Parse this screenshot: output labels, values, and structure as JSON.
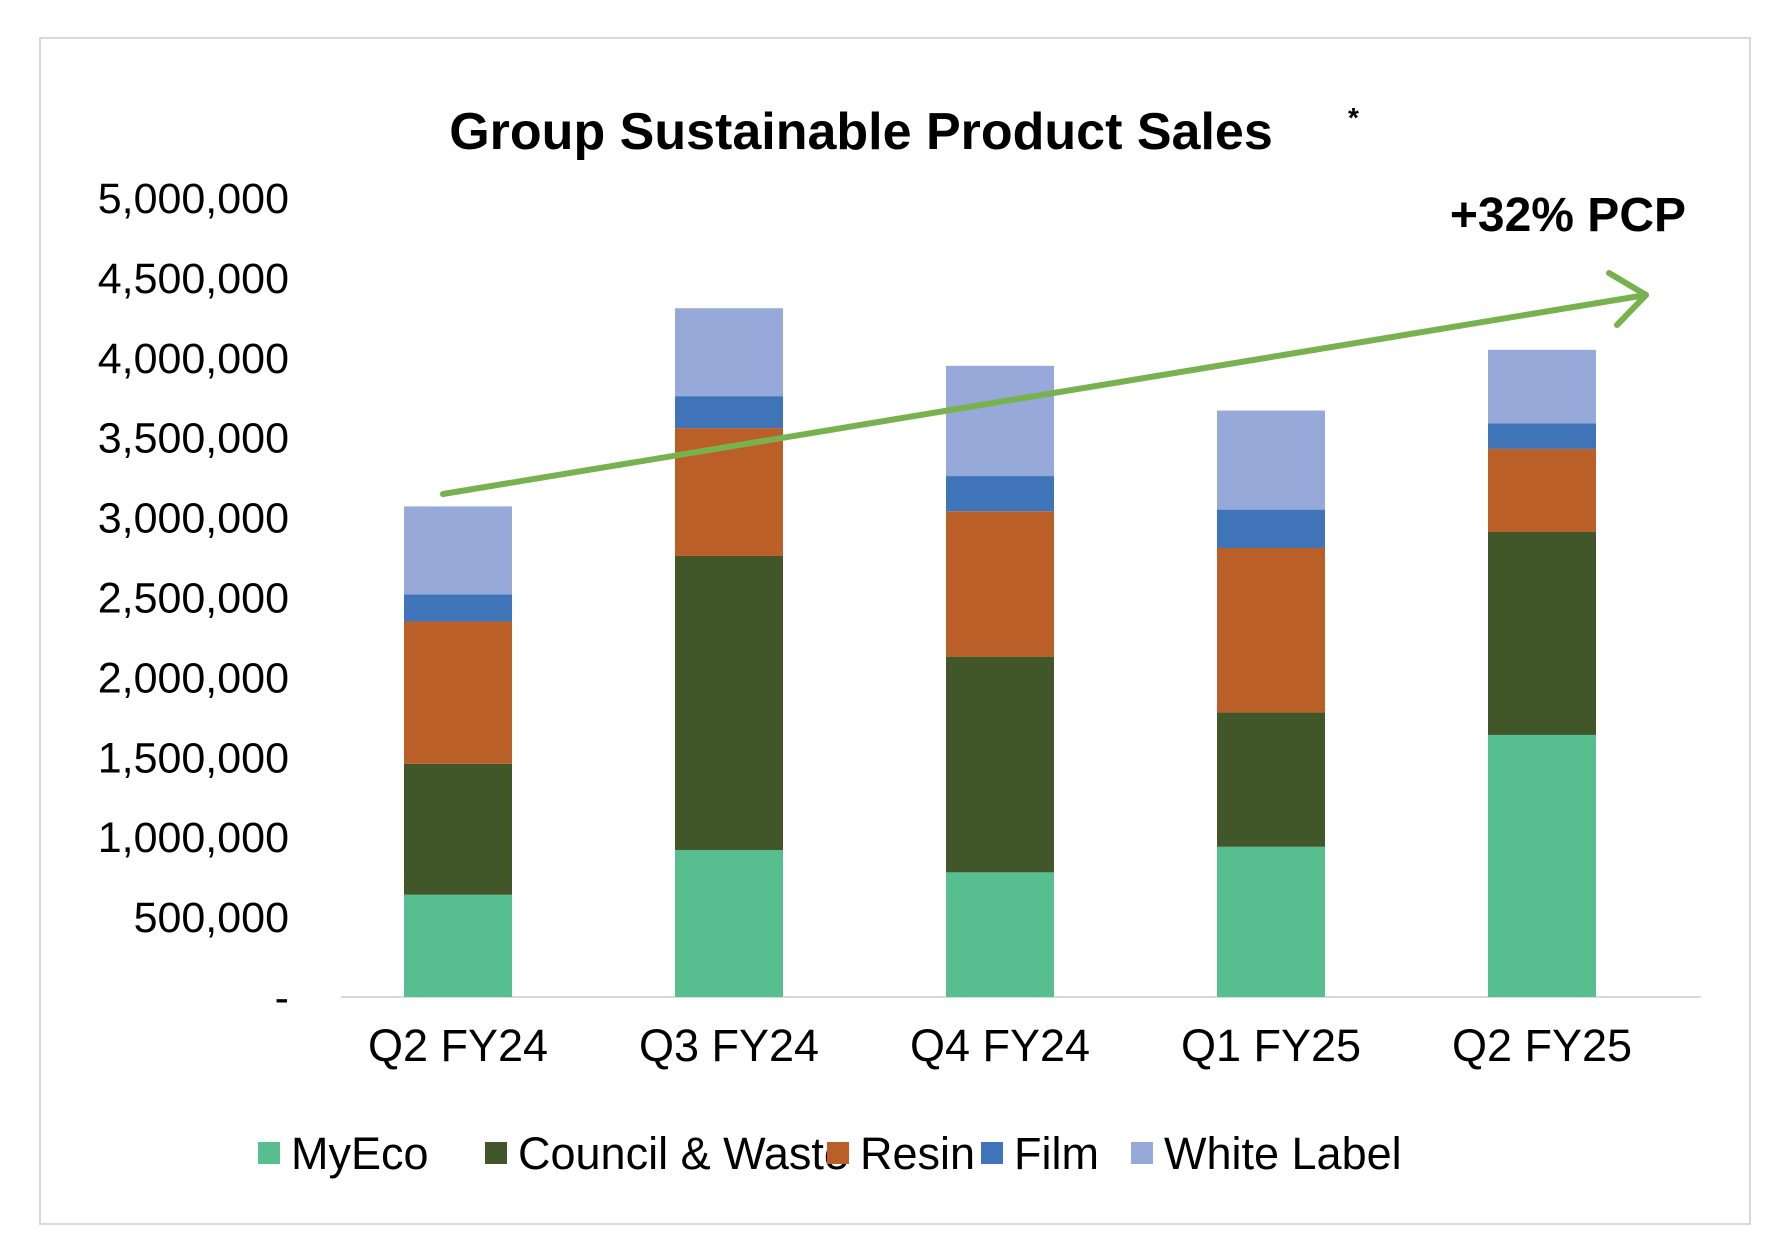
{
  "chart_data": {
    "type": "bar",
    "stacked": true,
    "title": "Group Sustainable Product Sales",
    "title_superscript": "*",
    "annotation": "+32% PCP",
    "categories": [
      "Q2 FY24",
      "Q3 FY24",
      "Q4 FY24",
      "Q1 FY25",
      "Q2 FY25"
    ],
    "series": [
      {
        "name": "MyEco",
        "color": "#57be90",
        "values": [
          640000,
          920000,
          780000,
          940000,
          1640000
        ]
      },
      {
        "name": "Council & Waste",
        "color": "#41572a",
        "values": [
          820000,
          1840000,
          1350000,
          840000,
          1270000
        ]
      },
      {
        "name": "Resin",
        "color": "#bb5f28",
        "values": [
          890000,
          800000,
          910000,
          1030000,
          520000
        ]
      },
      {
        "name": "Film",
        "color": "#3f74b8",
        "values": [
          170000,
          200000,
          220000,
          240000,
          160000
        ]
      },
      {
        "name": "White Label",
        "color": "#97a9d8",
        "values": [
          550000,
          550000,
          690000,
          620000,
          460000
        ]
      }
    ],
    "ylim": [
      0,
      5000000
    ],
    "yticks": [
      0,
      500000,
      1000000,
      1500000,
      2000000,
      2500000,
      3000000,
      3500000,
      4000000,
      4500000,
      5000000
    ],
    "ytick_labels": [
      "-",
      "500,000",
      "1,000,000",
      "1,500,000",
      "2,000,000",
      "2,500,000",
      "3,000,000",
      "3,500,000",
      "4,000,000",
      "4,500,000",
      "5,000,000"
    ],
    "grid": false,
    "legend_position": "bottom",
    "trend_arrow_color": "#77b24f"
  }
}
